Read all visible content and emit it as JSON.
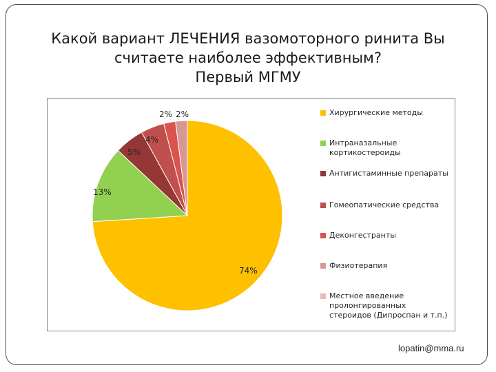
{
  "slide": {
    "title_lines": [
      "Какой вариант ЛЕЧЕНИЯ вазомоторного ринита Вы",
      "считаете наиболее эффективным?",
      "Первый МГМУ"
    ],
    "footer_email": "lopatin@mma.ru"
  },
  "chart_data": {
    "type": "pie",
    "title": "",
    "slices": [
      {
        "label": "Хирургические методы",
        "value": 74,
        "display": "74%",
        "color": "#ffc000"
      },
      {
        "label": "Интраназальные кортикостероиды",
        "value": 13,
        "display": "13%",
        "color": "#92d050"
      },
      {
        "label": "Антигистаминные препараты",
        "value": 5,
        "display": "5%",
        "color": "#953735"
      },
      {
        "label": "Гомеопатические средства",
        "value": 4,
        "display": "4%",
        "color": "#c0504d"
      },
      {
        "label": "Деконгестранты",
        "value": 2,
        "display": "2%",
        "color": "#d9534f"
      },
      {
        "label": "Физиотерапия",
        "value": 2,
        "display": "2%",
        "color": "#d99694"
      }
    ],
    "legend": [
      {
        "label": "Хирургические методы",
        "color": "#ffc000"
      },
      {
        "label": "Интраназальные кортикостероиды",
        "color": "#92d050"
      },
      {
        "label": "Антигистаминные препараты",
        "color": "#953735"
      },
      {
        "label": "Гомеопатические средства",
        "color": "#c0504d"
      },
      {
        "label": "Деконгестранты",
        "color": "#d9534f"
      },
      {
        "label": "Физиотерапия",
        "color": "#d99694"
      },
      {
        "label": "Местное введение пролонгированных стероидов (Дипроспан и т.п.)",
        "color": "#e6b9b8"
      }
    ],
    "legend_position": "right"
  }
}
